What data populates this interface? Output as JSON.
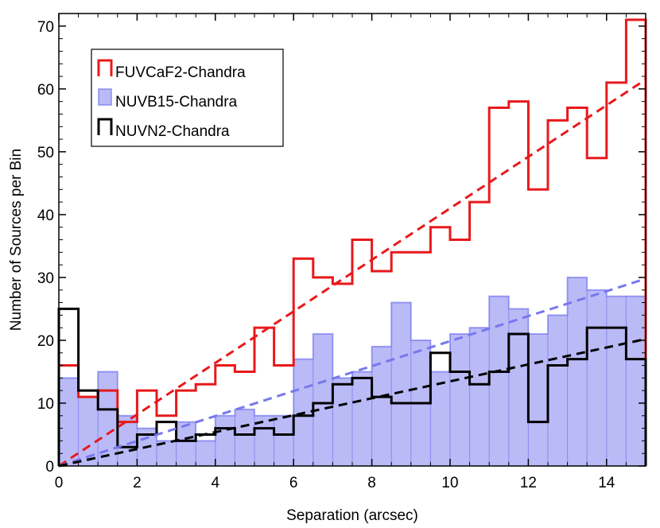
{
  "chart_data": {
    "type": "histogram",
    "xlabel": "Separation (arcsec)",
    "ylabel": "Number of Sources per Bin",
    "xlim": [
      0,
      15
    ],
    "ylim": [
      0,
      72
    ],
    "xticks": [
      0,
      2,
      4,
      6,
      8,
      10,
      12,
      14
    ],
    "yticks": [
      0,
      10,
      20,
      30,
      40,
      50,
      60,
      70
    ],
    "grid": false,
    "legend_position": "top-left",
    "bin_width": 0.5,
    "bin_edges": [
      0,
      0.5,
      1,
      1.5,
      2,
      2.5,
      3,
      3.5,
      4,
      4.5,
      5,
      5.5,
      6,
      6.5,
      7,
      7.5,
      8,
      8.5,
      9,
      9.5,
      10,
      10.5,
      11,
      11.5,
      12,
      12.5,
      13,
      13.5,
      14,
      14.5,
      15
    ],
    "series": [
      {
        "name": "FUVCaF2-Chandra",
        "style": "step",
        "color": "#e8191b",
        "values": [
          16,
          11,
          12,
          7,
          12,
          8,
          12,
          13,
          16,
          15,
          22,
          16,
          33,
          30,
          29,
          36,
          31,
          34,
          34,
          38,
          36,
          42,
          57,
          58,
          44,
          55,
          57,
          49,
          61,
          71
        ],
        "fit": {
          "x": [
            0,
            15
          ],
          "y": [
            0,
            61.5
          ]
        }
      },
      {
        "name": "NUVB15-Chandra",
        "style": "filled-step",
        "color": "#6666ee",
        "values": [
          14,
          11,
          15,
          8,
          6,
          4,
          7,
          4,
          8,
          9,
          8,
          8,
          17,
          21,
          14,
          15,
          19,
          26,
          20,
          15,
          21,
          22,
          27,
          25,
          21,
          24,
          30,
          28,
          27,
          27
        ],
        "fit": {
          "x": [
            0,
            15
          ],
          "y": [
            0,
            29.8
          ]
        }
      },
      {
        "name": "NUVN2-Chandra",
        "style": "step",
        "color": "#000000",
        "values": [
          25,
          12,
          9,
          3,
          5,
          7,
          4,
          5,
          6,
          5,
          6,
          5,
          8,
          10,
          13,
          14,
          11,
          10,
          10,
          18,
          15,
          13,
          15,
          21,
          7,
          16,
          17,
          22,
          22,
          17
        ],
        "fit": {
          "x": [
            0,
            15
          ],
          "y": [
            0,
            20.2
          ]
        }
      }
    ]
  }
}
